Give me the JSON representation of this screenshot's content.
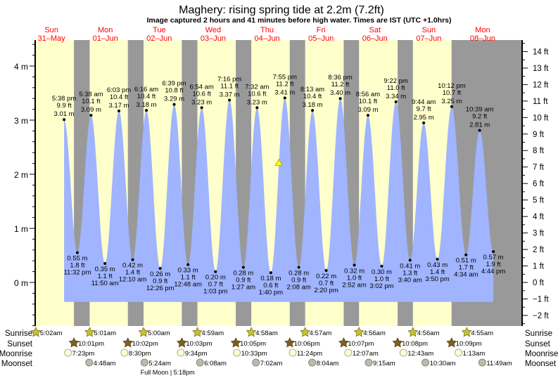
{
  "chart_data": {
    "type": "area",
    "title": "Maghery: rising  spring tide at 2.2m (7.2ft)",
    "subtitle": "Image captured 2 hours and 41 minutes before high water. Times are IST (UTC +1.0hrs)",
    "days": [
      {
        "dow": "Sun",
        "date": "31–May"
      },
      {
        "dow": "Mon",
        "date": "01–Jun"
      },
      {
        "dow": "Tue",
        "date": "02–Jun"
      },
      {
        "dow": "Wed",
        "date": "03–Jun"
      },
      {
        "dow": "Thu",
        "date": "04–Jun"
      },
      {
        "dow": "Fri",
        "date": "05–Jun"
      },
      {
        "dow": "Sat",
        "date": "06–Jun"
      },
      {
        "dow": "Sun",
        "date": "07–Jun"
      },
      {
        "dow": "Mon",
        "date": "08–Jun"
      }
    ],
    "y_left": {
      "unit": "m",
      "range": [
        -0.8,
        4.48
      ],
      "ticks": [
        "0 m",
        "1 m",
        "2 m",
        "3 m",
        "4 m"
      ]
    },
    "y_right": {
      "unit": "ft",
      "ticks": [
        "−2 ft",
        "−1 ft",
        "0 ft",
        "1 ft",
        "2 ft",
        "3 ft",
        "4 ft",
        "5 ft",
        "6 ft",
        "7 ft",
        "8 ft",
        "9 ft",
        "10 ft",
        "11 ft",
        "12 ft",
        "13 ft",
        "14 ft"
      ]
    },
    "x_range_hours": [
      4.75,
      221.6
    ],
    "extremes": [
      {
        "type": "high",
        "day": 0,
        "time": "5:38 pm",
        "m": "3.01 m",
        "ft": "9.9 ft",
        "value": 3.01
      },
      {
        "type": "low",
        "day": 0,
        "time": "11:32 pm",
        "m": "0.55 m",
        "ft": "1.8 ft",
        "value": 0.55
      },
      {
        "type": "high",
        "day": 1,
        "time": "5:38 am",
        "m": "3.09 m",
        "ft": "10.1 ft",
        "value": 3.09
      },
      {
        "type": "low",
        "day": 1,
        "time": "11:50 am",
        "m": "0.35 m",
        "ft": "1.1 ft",
        "value": 0.35
      },
      {
        "type": "high",
        "day": 1,
        "time": "6:03 pm",
        "m": "3.17 m",
        "ft": "10.4 ft",
        "value": 3.17
      },
      {
        "type": "low",
        "day": 2,
        "time": "12:10 am",
        "m": "0.42 m",
        "ft": "1.4 ft",
        "value": 0.42
      },
      {
        "type": "high",
        "day": 2,
        "time": "6:16 am",
        "m": "3.18 m",
        "ft": "10.4 ft",
        "value": 3.18
      },
      {
        "type": "low",
        "day": 2,
        "time": "12:26 pm",
        "m": "0.26 m",
        "ft": "0.9 ft",
        "value": 0.26
      },
      {
        "type": "high",
        "day": 2,
        "time": "6:39 pm",
        "m": "3.29 m",
        "ft": "10.8 ft",
        "value": 3.29
      },
      {
        "type": "low",
        "day": 3,
        "time": "12:48 am",
        "m": "0.33 m",
        "ft": "1.1 ft",
        "value": 0.33
      },
      {
        "type": "high",
        "day": 3,
        "time": "6:54 am",
        "m": "3.23 m",
        "ft": "10.6 ft",
        "value": 3.23
      },
      {
        "type": "low",
        "day": 3,
        "time": "1:03 pm",
        "m": "0.20 m",
        "ft": "0.7 ft",
        "value": 0.2
      },
      {
        "type": "high",
        "day": 3,
        "time": "7:16 pm",
        "m": "3.37 m",
        "ft": "11.1 ft",
        "value": 3.37
      },
      {
        "type": "low",
        "day": 4,
        "time": "1:27 am",
        "m": "0.28 m",
        "ft": "0.9 ft",
        "value": 0.28
      },
      {
        "type": "high",
        "day": 4,
        "time": "7:32 am",
        "m": "3.23 m",
        "ft": "10.6 ft",
        "value": 3.23
      },
      {
        "type": "low",
        "day": 4,
        "time": "1:40 pm",
        "m": "0.18 m",
        "ft": "0.6 ft",
        "value": 0.18
      },
      {
        "type": "high",
        "day": 4,
        "time": "7:55 pm",
        "m": "3.41 m",
        "ft": "11.2 ft",
        "value": 3.41
      },
      {
        "type": "low",
        "day": 5,
        "time": "2:08 am",
        "m": "0.28 m",
        "ft": "0.9 ft",
        "value": 0.28
      },
      {
        "type": "high",
        "day": 5,
        "time": "8:13 am",
        "m": "3.18 m",
        "ft": "10.4 ft",
        "value": 3.18
      },
      {
        "type": "low",
        "day": 5,
        "time": "2:20 pm",
        "m": "0.22 m",
        "ft": "0.7 ft",
        "value": 0.22
      },
      {
        "type": "high",
        "day": 5,
        "time": "8:36 pm",
        "m": "3.40 m",
        "ft": "11.2 ft",
        "value": 3.4
      },
      {
        "type": "low",
        "day": 6,
        "time": "2:52 am",
        "m": "0.32 m",
        "ft": "1.0 ft",
        "value": 0.32
      },
      {
        "type": "high",
        "day": 6,
        "time": "8:56 am",
        "m": "3.09 m",
        "ft": "10.1 ft",
        "value": 3.09
      },
      {
        "type": "low",
        "day": 6,
        "time": "3:02 pm",
        "m": "0.30 m",
        "ft": "1.0 ft",
        "value": 0.3
      },
      {
        "type": "high",
        "day": 6,
        "time": "9:22 pm",
        "m": "3.34 m",
        "ft": "11.0 ft",
        "value": 3.34
      },
      {
        "type": "low",
        "day": 7,
        "time": "3:40 am",
        "m": "0.41 m",
        "ft": "1.3 ft",
        "value": 0.41
      },
      {
        "type": "high",
        "day": 7,
        "time": "9:44 am",
        "m": "2.95 m",
        "ft": "9.7 ft",
        "value": 2.95
      },
      {
        "type": "low",
        "day": 7,
        "time": "3:50 pm",
        "m": "0.43 m",
        "ft": "1.4 ft",
        "value": 0.43
      },
      {
        "type": "high",
        "day": 7,
        "time": "10:12 pm",
        "m": "3.25 m",
        "ft": "10.7 ft",
        "value": 3.25
      },
      {
        "type": "low",
        "day": 8,
        "time": "4:34 am",
        "m": "0.51 m",
        "ft": "1.7 ft",
        "value": 0.51
      },
      {
        "type": "high",
        "day": 8,
        "time": "10:39 am",
        "m": "2.81 m",
        "ft": "9.2 ft",
        "value": 2.81
      },
      {
        "type": "low",
        "day": 8,
        "time": "4:44 pm",
        "m": "0.57 m",
        "ft": "1.9 ft",
        "value": 0.57
      }
    ],
    "current": {
      "day": 4,
      "time": "5:14 pm",
      "value": 2.2
    },
    "rows": {
      "sunrise": {
        "label": "Sunrise",
        "events": [
          {
            "day": 0,
            "time": "5:02am"
          },
          {
            "day": 1,
            "time": "5:01am"
          },
          {
            "day": 2,
            "time": "5:00am"
          },
          {
            "day": 3,
            "time": "4:59am"
          },
          {
            "day": 4,
            "time": "4:58am"
          },
          {
            "day": 5,
            "time": "4:57am"
          },
          {
            "day": 6,
            "time": "4:56am"
          },
          {
            "day": 7,
            "time": "4:56am"
          },
          {
            "day": 8,
            "time": "4:55am"
          }
        ]
      },
      "sunset": {
        "label": "Sunset",
        "events": [
          {
            "day": 0,
            "time": "10:01pm"
          },
          {
            "day": 1,
            "time": "10:02pm"
          },
          {
            "day": 2,
            "time": "10:03pm"
          },
          {
            "day": 3,
            "time": "10:05pm"
          },
          {
            "day": 4,
            "time": "10:06pm"
          },
          {
            "day": 5,
            "time": "10:07pm"
          },
          {
            "day": 6,
            "time": "10:08pm"
          },
          {
            "day": 7,
            "time": "10:09pm"
          }
        ]
      },
      "moonrise": {
        "label": "Moonrise",
        "events": [
          {
            "day": 0,
            "time": "7:23pm"
          },
          {
            "day": 1,
            "time": "8:30pm"
          },
          {
            "day": 2,
            "time": "9:34pm"
          },
          {
            "day": 3,
            "time": "10:33pm"
          },
          {
            "day": 4,
            "time": "11:24pm"
          },
          {
            "day": 6,
            "time": "12:07am"
          },
          {
            "day": 7,
            "time": "12:43am"
          },
          {
            "day": 8,
            "time": "1:13am"
          }
        ]
      },
      "moonset": {
        "label": "Moonset",
        "events": [
          {
            "day": 1,
            "time": "4:48am"
          },
          {
            "day": 2,
            "time": "5:24am"
          },
          {
            "day": 3,
            "time": "6:08am"
          },
          {
            "day": 4,
            "time": "7:02am"
          },
          {
            "day": 5,
            "time": "8:04am"
          },
          {
            "day": 6,
            "time": "9:15am"
          },
          {
            "day": 7,
            "time": "10:30am"
          },
          {
            "day": 8,
            "time": "11:49am"
          }
        ]
      }
    },
    "moon_phase": {
      "day": 2,
      "time": "5:18pm",
      "label": "Full Moon | 5:18pm"
    },
    "colors": {
      "day": "#ffffcc",
      "night": "#999999",
      "water": "#a0b4ff",
      "day_label": "#ff0000",
      "marker": "#ffff00"
    }
  }
}
